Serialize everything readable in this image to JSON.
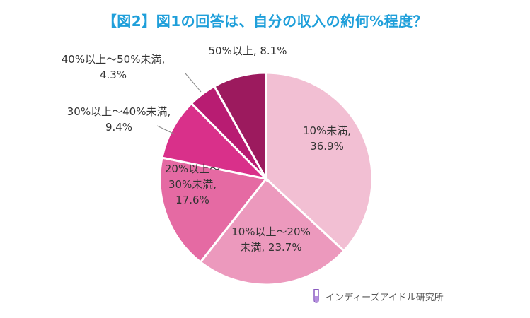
{
  "title": "【図2】図1の回答は、自分の収入の約何%程度？",
  "credit": {
    "text": "インディーズアイドル研究所",
    "icon": "test-tube-icon",
    "icon_color": "#8a5cc0"
  },
  "chart_data": {
    "type": "pie",
    "title": "【図2】図1の回答は、自分の収入の約何%程度？",
    "slices": [
      {
        "label_lines": [
          "10%未満,",
          "36.9%"
        ],
        "value": 36.9,
        "color": "#f2bfd3"
      },
      {
        "label_lines": [
          "10%以上～20%",
          "未満, 23.7%"
        ],
        "value": 23.7,
        "color": "#ec99bd"
      },
      {
        "label_lines": [
          "20%以上～",
          "30%未満,",
          "17.6%"
        ],
        "value": 17.6,
        "color": "#e56aa3"
      },
      {
        "label_lines": [
          "30%以上～40%未満,",
          "9.4%"
        ],
        "value": 9.4,
        "color": "#d9308a"
      },
      {
        "label_lines": [
          "40%以上～50%未満,",
          "4.3%"
        ],
        "value": 4.3,
        "color": "#b81c72"
      },
      {
        "label_lines": [
          "50%以上, 8.1%"
        ],
        "value": 8.1,
        "color": "#9c1a5e"
      }
    ],
    "start": "12 o'clock",
    "direction": "clockwise"
  }
}
